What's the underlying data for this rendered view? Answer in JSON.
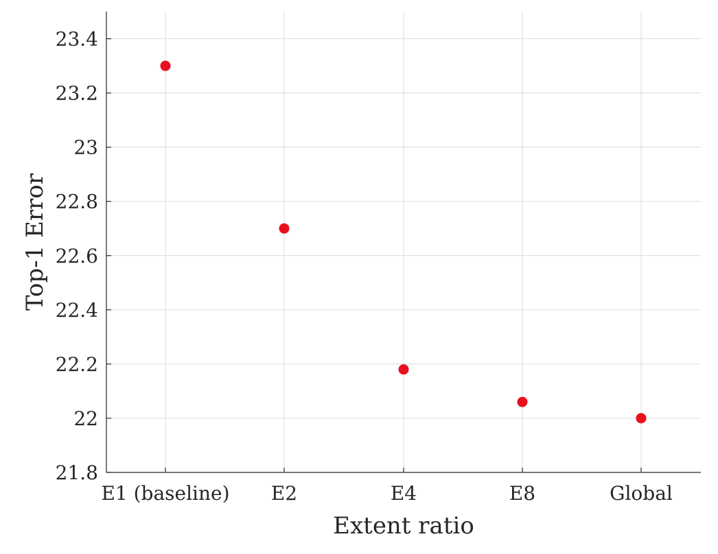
{
  "chart_data": {
    "type": "scatter",
    "title": "",
    "xlabel": "Extent ratio",
    "ylabel": "Top-1 Error",
    "categories": [
      "E1 (baseline)",
      "E2",
      "E4",
      "E8",
      "Global"
    ],
    "series": [
      {
        "values": [
          23.3,
          22.7,
          22.18,
          22.06,
          22.0
        ]
      }
    ],
    "ylim": [
      21.8,
      23.5
    ],
    "yticks": [
      21.8,
      22,
      22.2,
      22.4,
      22.6,
      22.8,
      23,
      23.2,
      23.4
    ],
    "ytick_labels": [
      "21.8",
      "22",
      "22.2",
      "22.4",
      "22.6",
      "22.8",
      "23",
      "23.2",
      "23.4"
    ],
    "grid": true,
    "legend": "none",
    "colors": {
      "marker": "#e8101e",
      "grid": "#dcdcdc",
      "axis": "#262626"
    }
  }
}
